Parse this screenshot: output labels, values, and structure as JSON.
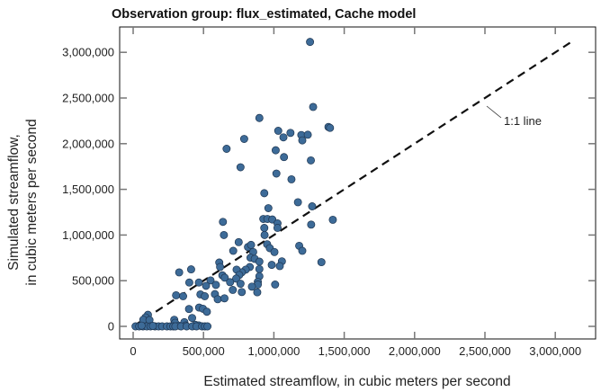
{
  "chart_data": {
    "type": "scatter",
    "title": "Observation group: flux_estimated, Cache model",
    "xlabel": "Estimated streamflow, in cubic meters per second",
    "ylabel_lines": [
      "Simulated streamflow,",
      "in cubic meters per second"
    ],
    "xlim": [
      -100000,
      3300000
    ],
    "ylim": [
      -150000,
      3300000
    ],
    "xticks": [
      0,
      500000,
      1000000,
      1500000,
      2000000,
      2500000,
      3000000
    ],
    "xtick_labels": [
      "0",
      "500,000",
      "1,000,000",
      "1,500,000",
      "2,000,000",
      "2,500,000",
      "3,000,000"
    ],
    "yticks": [
      0,
      500000,
      1000000,
      1500000,
      2000000,
      2500000,
      3000000
    ],
    "ytick_labels": [
      "0",
      "500,000",
      "1,000,000",
      "1,500,000",
      "2,000,000",
      "2,500,000",
      "3,000,000"
    ],
    "reference_line": {
      "label": "1:1 line",
      "from": [
        0,
        0
      ],
      "to": [
        3130000,
        3130000
      ]
    },
    "marker_color": "#3d6b98",
    "marker_edge": "#1e3550",
    "points": [
      [
        1257000,
        3114000
      ],
      [
        1279000,
        2402000
      ],
      [
        897000,
        2281000
      ],
      [
        1388000,
        2183000
      ],
      [
        1399000,
        2173000
      ],
      [
        1031000,
        2141000
      ],
      [
        1118000,
        2118000
      ],
      [
        1068000,
        2069000
      ],
      [
        1195000,
        2095000
      ],
      [
        1241000,
        2098000
      ],
      [
        1202000,
        2036000
      ],
      [
        789000,
        2052000
      ],
      [
        664000,
        1944000
      ],
      [
        1013000,
        1928000
      ],
      [
        1072000,
        1853000
      ],
      [
        1263000,
        1817000
      ],
      [
        763000,
        1742000
      ],
      [
        1018000,
        1673000
      ],
      [
        1125000,
        1610000
      ],
      [
        932000,
        1458000
      ],
      [
        1171000,
        1359000
      ],
      [
        961000,
        1294000
      ],
      [
        1272000,
        1314000
      ],
      [
        925000,
        1176000
      ],
      [
        954000,
        1176000
      ],
      [
        989000,
        1170000
      ],
      [
        1026000,
        1127000
      ],
      [
        1026000,
        1078000
      ],
      [
        1419000,
        1167000
      ],
      [
        1265000,
        1114000
      ],
      [
        932000,
        1078000
      ],
      [
        638000,
        1144000
      ],
      [
        645000,
        1000000
      ],
      [
        934000,
        1000000
      ],
      [
        750000,
        922000
      ],
      [
        816000,
        869000
      ],
      [
        838000,
        892000
      ],
      [
        952000,
        899000
      ],
      [
        971000,
        856000
      ],
      [
        1180000,
        882000
      ],
      [
        1202000,
        827000
      ],
      [
        711000,
        827000
      ],
      [
        853000,
        814000
      ],
      [
        1004000,
        814000
      ],
      [
        834000,
        752000
      ],
      [
        864000,
        739000
      ],
      [
        897000,
        709000
      ],
      [
        1057000,
        712000
      ],
      [
        1338000,
        703000
      ],
      [
        612000,
        699000
      ],
      [
        618000,
        650000
      ],
      [
        985000,
        673000
      ],
      [
        1042000,
        660000
      ],
      [
        829000,
        650000
      ],
      [
        800000,
        621000
      ],
      [
        772000,
        592000
      ],
      [
        412000,
        624000
      ],
      [
        735000,
        621000
      ],
      [
        897000,
        627000
      ],
      [
        327000,
        591000
      ],
      [
        754000,
        562000
      ],
      [
        634000,
        559000
      ],
      [
        651000,
        533000
      ],
      [
        897000,
        549000
      ],
      [
        732000,
        523000
      ],
      [
        550000,
        503000
      ],
      [
        689000,
        484000
      ],
      [
        886000,
        487000
      ],
      [
        886000,
        458000
      ],
      [
        763000,
        467000
      ],
      [
        467000,
        480000
      ],
      [
        399000,
        480000
      ],
      [
        588000,
        454000
      ],
      [
        518000,
        444000
      ],
      [
        844000,
        435000
      ],
      [
        1009000,
        458000
      ],
      [
        305000,
        340000
      ],
      [
        355000,
        330000
      ],
      [
        478000,
        350000
      ],
      [
        509000,
        330000
      ],
      [
        581000,
        353000
      ],
      [
        708000,
        399000
      ],
      [
        772000,
        376000
      ],
      [
        882000,
        373000
      ],
      [
        601000,
        297000
      ],
      [
        649000,
        307000
      ],
      [
        397000,
        190000
      ],
      [
        469000,
        206000
      ],
      [
        496000,
        193000
      ],
      [
        524000,
        160000
      ],
      [
        419000,
        92000
      ],
      [
        105000,
        127000
      ],
      [
        88000,
        98000
      ],
      [
        72000,
        72000
      ],
      [
        116000,
        69000
      ],
      [
        292000,
        72000
      ],
      [
        298000,
        39000
      ],
      [
        364000,
        46000
      ],
      [
        373000,
        10000
      ],
      [
        325000,
        7000
      ],
      [
        443000,
        16000
      ],
      [
        467000,
        10000
      ],
      [
        17000,
        0
      ],
      [
        43000,
        0
      ],
      [
        70000,
        0
      ],
      [
        97000,
        0
      ],
      [
        123000,
        0
      ],
      [
        155000,
        0
      ],
      [
        180000,
        0
      ],
      [
        206000,
        0
      ],
      [
        240000,
        0
      ],
      [
        265000,
        0
      ],
      [
        285000,
        0
      ],
      [
        300000,
        0
      ],
      [
        340000,
        0
      ],
      [
        380000,
        0
      ],
      [
        420000,
        0
      ],
      [
        450000,
        0
      ],
      [
        490000,
        0
      ],
      [
        510000,
        0
      ],
      [
        528000,
        0
      ],
      [
        60000,
        8000
      ],
      [
        140000,
        5000
      ]
    ]
  }
}
